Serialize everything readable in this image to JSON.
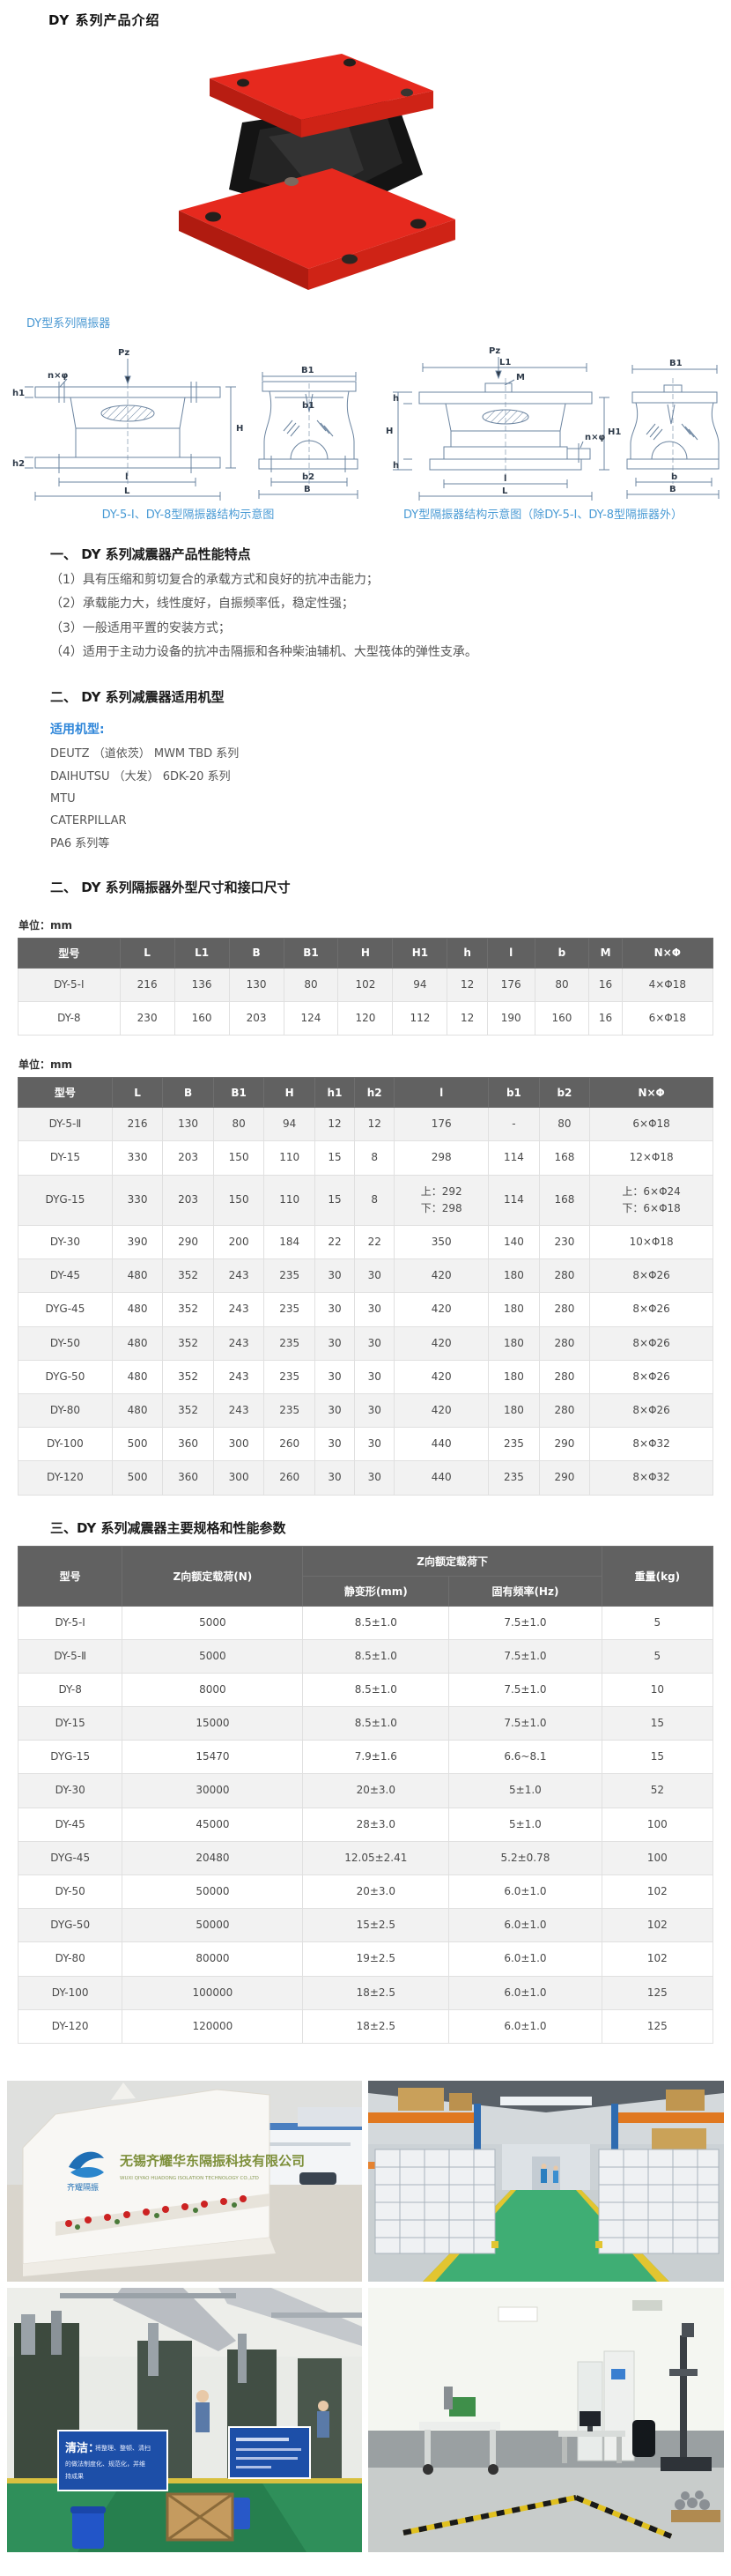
{
  "page": {
    "title": "DY 系列产品介绍"
  },
  "figure": {
    "label": "DY型系列隔振器"
  },
  "diagram": {
    "left": {
      "caption": "DY-5-Ⅰ、DY-8型隔振器结构示意图",
      "labels": {
        "pz": "Pz",
        "nphi": "n×φ",
        "h1": "h1",
        "h2": "h2",
        "H": "H",
        "l": "l",
        "L": "L",
        "B1": "B1",
        "b1": "b1",
        "b2": "b2",
        "B": "B"
      }
    },
    "right": {
      "caption": "DY型隔振器结构示意图（除DY-5-Ⅰ、DY-8型隔振器外）",
      "labels": {
        "pz": "Pz",
        "L1": "L1",
        "M": "M",
        "h_top": "h",
        "H": "H",
        "H1": "H1",
        "nphi": "n×φ",
        "h_bottom": "h",
        "l": "l",
        "L": "L",
        "B1": "B1",
        "b": "b",
        "B": "B"
      }
    }
  },
  "section1": {
    "heading": "一、 DY 系列减震器产品性能特点",
    "items": [
      "（1）具有压缩和剪切复合的承载方式和良好的抗冲击能力；",
      "（2）承载能力大，线性度好，自振频率低，稳定性强；",
      "（3）一般适用平置的安装方式；",
      "（4）适用于主动力设备的抗冲击隔振和各种柴油辅机、大型筏体的弹性支承。"
    ]
  },
  "section2": {
    "heading": "二、 DY 系列减震器适用机型",
    "applicable_label": "适用机型:",
    "models": [
      "DEUTZ （道依茨） MWM TBD 系列",
      "DAIHUTSU （大发） 6DK-20 系列",
      "MTU",
      "CATERPILLAR",
      "PA6 系列等"
    ],
    "heading2": "二、 DY 系列隔振器外型尺寸和接口尺寸"
  },
  "section3": {
    "heading": "三、DY 系列减震器主要规格和性能参数"
  },
  "table1": {
    "unit": "单位：mm",
    "headers": [
      "型号",
      "L",
      "L1",
      "B",
      "B1",
      "H",
      "H1",
      "h",
      "l",
      "b",
      "M",
      "N×Φ"
    ],
    "rows": [
      [
        "DY-5-Ⅰ",
        "216",
        "136",
        "130",
        "80",
        "102",
        "94",
        "12",
        "176",
        "80",
        "16",
        "4×Φ18"
      ],
      [
        "DY-8",
        "230",
        "160",
        "203",
        "124",
        "120",
        "112",
        "12",
        "190",
        "160",
        "16",
        "6×Φ18"
      ]
    ]
  },
  "table2": {
    "unit": "单位：mm",
    "headers": [
      "型号",
      "L",
      "B",
      "B1",
      "H",
      "h1",
      "h2",
      "l",
      "b1",
      "b2",
      "N×Φ"
    ],
    "rows": [
      [
        "DY-5-Ⅱ",
        "216",
        "130",
        "80",
        "94",
        "12",
        "12",
        "176",
        "-",
        "80",
        "6×Φ18"
      ],
      [
        "DY-15",
        "330",
        "203",
        "150",
        "110",
        "15",
        "8",
        "298",
        "114",
        "168",
        "12×Φ18"
      ],
      [
        "DYG-15",
        "330",
        "203",
        "150",
        "110",
        "15",
        "8",
        "上：292\n下：298",
        "114",
        "168",
        "上：6×Φ24\n下：6×Φ18"
      ],
      [
        "DY-30",
        "390",
        "290",
        "200",
        "184",
        "22",
        "22",
        "350",
        "140",
        "230",
        "10×Φ18"
      ],
      [
        "DY-45",
        "480",
        "352",
        "243",
        "235",
        "30",
        "30",
        "420",
        "180",
        "280",
        "8×Φ26"
      ],
      [
        "DYG-45",
        "480",
        "352",
        "243",
        "235",
        "30",
        "30",
        "420",
        "180",
        "280",
        "8×Φ26"
      ],
      [
        "DY-50",
        "480",
        "352",
        "243",
        "235",
        "30",
        "30",
        "420",
        "180",
        "280",
        "8×Φ26"
      ],
      [
        "DYG-50",
        "480",
        "352",
        "243",
        "235",
        "30",
        "30",
        "420",
        "180",
        "280",
        "8×Φ26"
      ],
      [
        "DY-80",
        "480",
        "352",
        "243",
        "235",
        "30",
        "30",
        "420",
        "180",
        "280",
        "8×Φ26"
      ],
      [
        "DY-100",
        "500",
        "360",
        "300",
        "260",
        "30",
        "30",
        "440",
        "235",
        "290",
        "8×Φ32"
      ],
      [
        "DY-120",
        "500",
        "360",
        "300",
        "260",
        "30",
        "30",
        "440",
        "235",
        "290",
        "8×Φ32"
      ]
    ]
  },
  "table3": {
    "headers": {
      "model": "型号",
      "load": "Z向额定载荷(N)",
      "group": "Z向额定载荷下",
      "deform": "静变形(mm)",
      "freq": "固有频率(Hz)",
      "weight": "重量(kg)"
    },
    "rows": [
      [
        "DY-5-Ⅰ",
        "5000",
        "8.5±1.0",
        "7.5±1.0",
        "5"
      ],
      [
        "DY-5-Ⅱ",
        "5000",
        "8.5±1.0",
        "7.5±1.0",
        "5"
      ],
      [
        "DY-8",
        "8000",
        "8.5±1.0",
        "7.5±1.0",
        "10"
      ],
      [
        "DY-15",
        "15000",
        "8.5±1.0",
        "7.5±1.0",
        "15"
      ],
      [
        "DYG-15",
        "15470",
        "7.9±1.6",
        "6.6~8.1",
        "15"
      ],
      [
        "DY-30",
        "30000",
        "20±3.0",
        "5±1.0",
        "52"
      ],
      [
        "DY-45",
        "45000",
        "28±3.0",
        "5±1.0",
        "100"
      ],
      [
        "DYG-45",
        "20480",
        "12.05±2.41",
        "5.2±0.78",
        "100"
      ],
      [
        "DY-50",
        "50000",
        "20±3.0",
        "6.0±1.0",
        "102"
      ],
      [
        "DYG-50",
        "50000",
        "15±2.5",
        "6.0±1.0",
        "102"
      ],
      [
        "DY-80",
        "80000",
        "19±2.5",
        "6.0±1.0",
        "102"
      ],
      [
        "DY-100",
        "100000",
        "18±2.5",
        "6.0±1.0",
        "125"
      ],
      [
        "DY-120",
        "120000",
        "18±2.5",
        "6.0±1.0",
        "125"
      ]
    ]
  },
  "photos": {
    "entrance": {
      "company_cn": "无锡齐耀华东隔振科技有限公司",
      "company_en": "WUXI QIYAO HUADONG ISOLATION TECHNOLOGY CO.,LTD",
      "logo_text": "齐耀隔振"
    },
    "workshop": {
      "sign_title": "清洁：",
      "sign_l1": "将整理、整顿、清扫",
      "sign_l2": "的做法制度化、规范化，并维",
      "sign_l3": "持成果"
    }
  },
  "colors": {
    "accent_blue": "#4a98d2",
    "link_blue": "#2e86d9",
    "table_header_bg": "#616161",
    "row_alt": "#f2f2f2",
    "product_red": "#e6291e"
  }
}
